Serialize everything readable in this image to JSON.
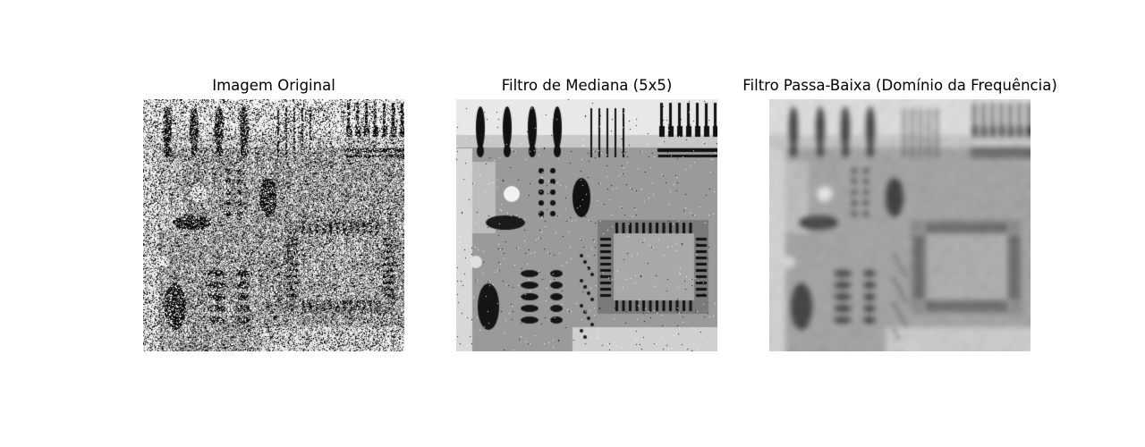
{
  "figure": {
    "panels": [
      {
        "title": "Imagem Original",
        "kind": "noisy"
      },
      {
        "title": "Filtro de Mediana (5x5)",
        "kind": "median"
      },
      {
        "title": "Filtro Passa-Baixa (Domínio da Frequência)",
        "kind": "lowpass"
      }
    ]
  }
}
